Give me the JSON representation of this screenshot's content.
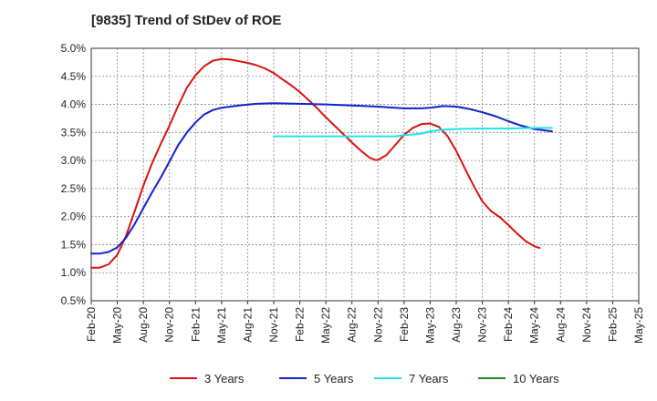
{
  "title": "[9835]  Trend of StDev of ROE",
  "colors": {
    "s3": "#dd1111",
    "s5": "#1122cc",
    "s7": "#22e5e5",
    "s10": "#228822",
    "grid": "#888888",
    "axis": "#333333"
  },
  "chart_data": {
    "type": "line",
    "title": "[9835]  Trend of StDev of ROE",
    "xlabel": "",
    "ylabel": "",
    "ylim": [
      0.5,
      5.0
    ],
    "y_ticks": [
      "0.5%",
      "1.0%",
      "1.5%",
      "2.0%",
      "2.5%",
      "3.0%",
      "3.5%",
      "4.0%",
      "4.5%",
      "5.0%"
    ],
    "x_ticks": [
      "Feb-20",
      "May-20",
      "Aug-20",
      "Nov-20",
      "Feb-21",
      "May-21",
      "Aug-21",
      "Nov-21",
      "Feb-22",
      "May-22",
      "Aug-22",
      "Nov-22",
      "Feb-23",
      "May-23",
      "Aug-23",
      "Nov-23",
      "Feb-24",
      "May-24",
      "Aug-24",
      "Nov-24",
      "Feb-25",
      "May-25"
    ],
    "grid": true,
    "legend_position": "bottom",
    "series": [
      {
        "name": "3 Years",
        "color_key": "s3",
        "points": [
          [
            0,
            1.09
          ],
          [
            0.33,
            1.09
          ],
          [
            0.67,
            1.15
          ],
          [
            1,
            1.32
          ],
          [
            1.33,
            1.65
          ],
          [
            1.67,
            2.1
          ],
          [
            2,
            2.55
          ],
          [
            2.33,
            2.95
          ],
          [
            2.67,
            3.3
          ],
          [
            3,
            3.62
          ],
          [
            3.33,
            3.97
          ],
          [
            3.67,
            4.3
          ],
          [
            4,
            4.52
          ],
          [
            4.33,
            4.68
          ],
          [
            4.67,
            4.78
          ],
          [
            5,
            4.81
          ],
          [
            5.33,
            4.8
          ],
          [
            5.67,
            4.77
          ],
          [
            6,
            4.74
          ],
          [
            6.33,
            4.7
          ],
          [
            6.67,
            4.64
          ],
          [
            7,
            4.56
          ],
          [
            7.33,
            4.45
          ],
          [
            7.67,
            4.34
          ],
          [
            8,
            4.22
          ],
          [
            8.33,
            4.08
          ],
          [
            8.67,
            3.93
          ],
          [
            9,
            3.77
          ],
          [
            9.33,
            3.62
          ],
          [
            9.67,
            3.47
          ],
          [
            10,
            3.32
          ],
          [
            10.33,
            3.18
          ],
          [
            10.67,
            3.05
          ],
          [
            10.9,
            3.01
          ],
          [
            11,
            3.01
          ],
          [
            11.33,
            3.1
          ],
          [
            11.67,
            3.28
          ],
          [
            12,
            3.46
          ],
          [
            12.33,
            3.58
          ],
          [
            12.67,
            3.65
          ],
          [
            13,
            3.66
          ],
          [
            13.33,
            3.6
          ],
          [
            13.67,
            3.43
          ],
          [
            14,
            3.17
          ],
          [
            14.33,
            2.86
          ],
          [
            14.67,
            2.55
          ],
          [
            15,
            2.27
          ],
          [
            15.33,
            2.1
          ],
          [
            15.67,
            1.99
          ],
          [
            16,
            1.85
          ],
          [
            16.33,
            1.7
          ],
          [
            16.67,
            1.56
          ],
          [
            17,
            1.47
          ],
          [
            17.2,
            1.44
          ]
        ]
      },
      {
        "name": "5 Years",
        "color_key": "s5",
        "points": [
          [
            0,
            1.34
          ],
          [
            0.33,
            1.34
          ],
          [
            0.67,
            1.37
          ],
          [
            1,
            1.45
          ],
          [
            1.33,
            1.62
          ],
          [
            1.67,
            1.87
          ],
          [
            2,
            2.15
          ],
          [
            2.33,
            2.43
          ],
          [
            2.67,
            2.7
          ],
          [
            3,
            2.98
          ],
          [
            3.33,
            3.27
          ],
          [
            3.67,
            3.5
          ],
          [
            4,
            3.68
          ],
          [
            4.33,
            3.82
          ],
          [
            4.67,
            3.9
          ],
          [
            5,
            3.94
          ],
          [
            5.67,
            3.98
          ],
          [
            6.33,
            4.01
          ],
          [
            7,
            4.02
          ],
          [
            8,
            4.01
          ],
          [
            9,
            4.0
          ],
          [
            10,
            3.98
          ],
          [
            11,
            3.96
          ],
          [
            12,
            3.93
          ],
          [
            12.67,
            3.93
          ],
          [
            13,
            3.94
          ],
          [
            13.5,
            3.97
          ],
          [
            14,
            3.96
          ],
          [
            14.5,
            3.92
          ],
          [
            15,
            3.86
          ],
          [
            15.5,
            3.79
          ],
          [
            16,
            3.7
          ],
          [
            16.5,
            3.62
          ],
          [
            17,
            3.56
          ],
          [
            17.5,
            3.53
          ],
          [
            17.67,
            3.52
          ]
        ]
      },
      {
        "name": "7 Years",
        "color_key": "s7",
        "points": [
          [
            7,
            3.43
          ],
          [
            8,
            3.43
          ],
          [
            9,
            3.43
          ],
          [
            10,
            3.43
          ],
          [
            11,
            3.43
          ],
          [
            11.67,
            3.43
          ],
          [
            12,
            3.45
          ],
          [
            12.67,
            3.48
          ],
          [
            13,
            3.52
          ],
          [
            13.5,
            3.55
          ],
          [
            14,
            3.56
          ],
          [
            15,
            3.57
          ],
          [
            16,
            3.57
          ],
          [
            17,
            3.58
          ],
          [
            17.67,
            3.58
          ]
        ]
      },
      {
        "name": "10 Years",
        "color_key": "s10",
        "points": []
      }
    ]
  }
}
